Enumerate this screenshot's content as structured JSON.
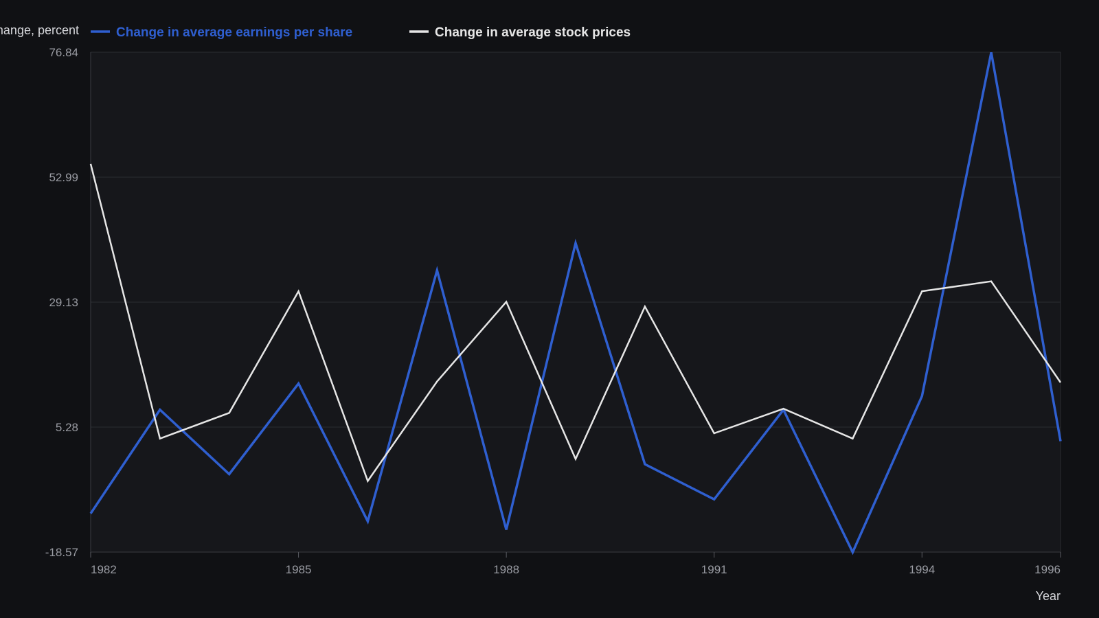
{
  "chart_data": {
    "type": "line",
    "title": "",
    "xlabel": "Year",
    "ylabel": "Change, percent",
    "x": [
      1982,
      1983,
      1984,
      1985,
      1986,
      1987,
      1988,
      1989,
      1990,
      1991,
      1992,
      1993,
      1994,
      1995,
      1996
    ],
    "x_ticks": [
      1982,
      1985,
      1988,
      1991,
      1994,
      1996
    ],
    "y_ticks": [
      "-18.57",
      "5.28",
      "29.13",
      "52.99",
      "76.84"
    ],
    "ylim": [
      -18.57,
      76.84
    ],
    "xlim": [
      1982,
      1996
    ],
    "grid": "horizontal",
    "legend_position": "top-left",
    "series": [
      {
        "name": "Change in average earnings per share",
        "color": "#2f5fd0",
        "values": [
          -11.2,
          8.6,
          -3.7,
          13.6,
          -12.7,
          35.2,
          -14.3,
          40.4,
          -1.8,
          -8.5,
          8.6,
          -18.6,
          11.2,
          76.8,
          2.6
        ]
      },
      {
        "name": "Change in average stock prices",
        "color": "#e6e6e6",
        "values": [
          55.5,
          3.1,
          8.0,
          31.2,
          -5.0,
          14.0,
          29.2,
          -0.8,
          28.3,
          4.1,
          8.8,
          3.1,
          31.2,
          33.1,
          13.8
        ]
      }
    ]
  }
}
